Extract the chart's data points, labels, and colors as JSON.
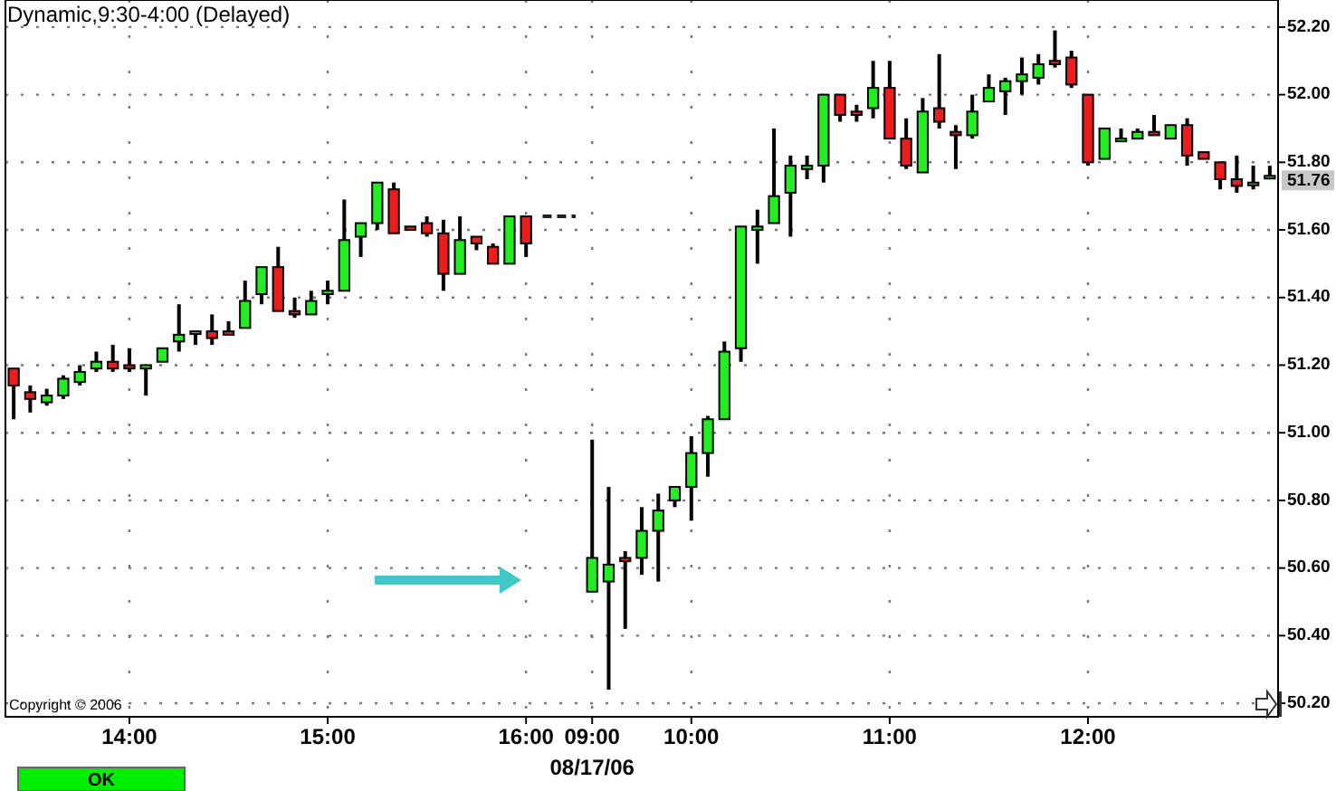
{
  "chart_data": {
    "type": "candlestick",
    "title": "Dynamic,9:30-4:00 (Delayed)",
    "categories": [
      null,
      null,
      null,
      null,
      null,
      null,
      null,
      "14:00",
      null,
      null,
      null,
      null,
      null,
      null,
      null,
      null,
      null,
      null,
      null,
      "15:00",
      null,
      null,
      null,
      null,
      null,
      null,
      null,
      null,
      null,
      null,
      null,
      "16:00",
      null,
      null,
      null,
      "09:00",
      null,
      null,
      null,
      null,
      null,
      "10:00",
      null,
      null,
      null,
      null,
      null,
      null,
      null,
      null,
      null,
      null,
      null,
      "11:00",
      null,
      null,
      null,
      null,
      null,
      null,
      null,
      null,
      null,
      null,
      null,
      "12:00",
      null,
      null,
      null,
      null,
      null,
      null,
      null,
      null,
      null,
      null,
      null
    ],
    "ohlc": [
      [
        51.19,
        51.19,
        51.04,
        51.14
      ],
      [
        51.12,
        51.14,
        51.06,
        51.1
      ],
      [
        51.09,
        51.13,
        51.08,
        51.11
      ],
      [
        51.11,
        51.17,
        51.1,
        51.16
      ],
      [
        51.15,
        51.2,
        51.14,
        51.18
      ],
      [
        51.19,
        51.24,
        51.18,
        51.21
      ],
      [
        51.21,
        51.26,
        51.18,
        51.19
      ],
      [
        51.2,
        51.25,
        51.18,
        51.19
      ],
      [
        51.19,
        51.2,
        51.11,
        51.2
      ],
      [
        51.21,
        51.25,
        51.21,
        51.25
      ],
      [
        51.27,
        51.38,
        51.24,
        51.29
      ],
      [
        51.3,
        51.3,
        51.26,
        51.3
      ],
      [
        51.3,
        51.35,
        51.26,
        51.28
      ],
      [
        51.3,
        51.33,
        51.29,
        51.29
      ],
      [
        51.31,
        51.45,
        51.31,
        51.39
      ],
      [
        51.41,
        51.49,
        51.38,
        51.49
      ],
      [
        51.49,
        51.55,
        51.36,
        51.36
      ],
      [
        51.36,
        51.4,
        51.34,
        51.35
      ],
      [
        51.35,
        51.42,
        51.35,
        51.39
      ],
      [
        51.41,
        51.45,
        51.38,
        51.42
      ],
      [
        51.42,
        51.69,
        51.42,
        51.57
      ],
      [
        51.58,
        51.62,
        51.52,
        51.62
      ],
      [
        51.62,
        51.74,
        51.6,
        51.74
      ],
      [
        51.72,
        51.74,
        51.59,
        51.59
      ],
      [
        51.61,
        51.61,
        51.6,
        51.6
      ],
      [
        51.62,
        51.64,
        51.58,
        51.59
      ],
      [
        51.59,
        51.63,
        51.42,
        51.47
      ],
      [
        51.47,
        51.64,
        51.47,
        51.57
      ],
      [
        51.58,
        51.58,
        51.54,
        51.56
      ],
      [
        51.55,
        51.56,
        51.5,
        51.5
      ],
      [
        51.5,
        51.64,
        51.5,
        51.64
      ],
      [
        51.64,
        51.64,
        51.52,
        51.56
      ],
      null,
      null,
      null,
      [
        50.53,
        50.98,
        50.53,
        50.63
      ],
      [
        50.56,
        50.84,
        50.24,
        50.61
      ],
      [
        50.63,
        50.65,
        50.42,
        50.62
      ],
      [
        50.63,
        50.78,
        50.58,
        50.71
      ],
      [
        50.71,
        50.82,
        50.56,
        50.77
      ],
      [
        50.8,
        50.84,
        50.78,
        50.84
      ],
      [
        50.84,
        50.99,
        50.74,
        50.94
      ],
      [
        50.94,
        51.05,
        50.87,
        51.04
      ],
      [
        51.04,
        51.27,
        51.04,
        51.24
      ],
      [
        51.25,
        51.61,
        51.21,
        51.61
      ],
      [
        51.6,
        51.66,
        51.5,
        51.61
      ],
      [
        51.62,
        51.9,
        51.62,
        51.7
      ],
      [
        51.71,
        51.82,
        51.58,
        51.79
      ],
      [
        51.78,
        51.82,
        51.75,
        51.79
      ],
      [
        51.79,
        52.0,
        51.74,
        52.0
      ],
      [
        52.0,
        52.0,
        51.92,
        51.94
      ],
      [
        51.95,
        51.97,
        51.92,
        51.94
      ],
      [
        51.96,
        52.1,
        51.93,
        52.02
      ],
      [
        52.02,
        52.1,
        51.87,
        51.87
      ],
      [
        51.87,
        51.93,
        51.78,
        51.79
      ],
      [
        51.77,
        51.99,
        51.77,
        51.95
      ],
      [
        51.96,
        52.12,
        51.9,
        51.92
      ],
      [
        51.89,
        51.91,
        51.78,
        51.88
      ],
      [
        51.88,
        52.0,
        51.87,
        51.95
      ],
      [
        51.98,
        52.06,
        51.98,
        52.02
      ],
      [
        52.01,
        52.05,
        51.94,
        52.04
      ],
      [
        52.04,
        52.11,
        52.0,
        52.06
      ],
      [
        52.05,
        52.12,
        52.03,
        52.09
      ],
      [
        52.1,
        52.19,
        52.08,
        52.09
      ],
      [
        52.11,
        52.13,
        52.02,
        52.03
      ],
      [
        52.0,
        52.0,
        51.79,
        51.8
      ],
      [
        51.81,
        51.9,
        51.81,
        51.9
      ],
      [
        51.87,
        51.9,
        51.87,
        51.87
      ],
      [
        51.87,
        51.9,
        51.87,
        51.89
      ],
      [
        51.89,
        51.94,
        51.88,
        51.88
      ],
      [
        51.87,
        51.91,
        51.87,
        51.91
      ],
      [
        51.91,
        51.93,
        51.79,
        51.82
      ],
      [
        51.83,
        51.83,
        51.81,
        51.81
      ],
      [
        51.8,
        51.8,
        51.72,
        51.75
      ],
      [
        51.75,
        51.82,
        51.71,
        51.73
      ],
      [
        51.74,
        51.79,
        51.72,
        51.74
      ],
      [
        51.76,
        51.79,
        51.76,
        51.76
      ]
    ],
    "colors": [
      "#ee1c1c",
      "#ee1c1c",
      "#22ee22",
      "#22ee22",
      "#22ee22",
      "#22ee22",
      "#ee1c1c",
      "#ee1c1c",
      "#22ee22",
      "#22ee22",
      "#22ee22",
      "#22ee22",
      "#ee1c1c",
      "#ee1c1c",
      "#22ee22",
      "#22ee22",
      "#ee1c1c",
      "#ee1c1c",
      "#22ee22",
      "#22ee22",
      "#22ee22",
      "#22ee22",
      "#22ee22",
      "#ee1c1c",
      "#ee1c1c",
      "#ee1c1c",
      "#ee1c1c",
      "#22ee22",
      "#ee1c1c",
      "#ee1c1c",
      "#22ee22",
      "#ee1c1c",
      null,
      null,
      null,
      "#22ee22",
      "#22ee22",
      "#ee1c1c",
      "#22ee22",
      "#22ee22",
      "#22ee22",
      "#22ee22",
      "#22ee22",
      "#22ee22",
      "#22ee22",
      "#22ee22",
      "#22ee22",
      "#22ee22",
      "#22ee22",
      "#22ee22",
      "#ee1c1c",
      "#ee1c1c",
      "#22ee22",
      "#ee1c1c",
      "#ee1c1c",
      "#22ee22",
      "#ee1c1c",
      "#ee1c1c",
      "#22ee22",
      "#22ee22",
      "#22ee22",
      "#22ee22",
      "#22ee22",
      "#ee1c1c",
      "#ee1c1c",
      "#ee1c1c",
      "#22ee22",
      "#22ee22",
      "#22ee22",
      "#ee1c1c",
      "#22ee22",
      "#ee1c1c",
      "#ee1c1c",
      "#ee1c1c",
      "#ee1c1c",
      "#22ee22",
      "#22ee22"
    ],
    "series": [
      {
        "type": "line",
        "color": "#202020",
        "line_style": "dashed",
        "values": [
          null,
          null,
          null,
          null,
          null,
          null,
          null,
          null,
          null,
          null,
          null,
          null,
          null,
          null,
          null,
          null,
          null,
          null,
          null,
          null,
          null,
          null,
          null,
          null,
          null,
          null,
          null,
          null,
          null,
          null,
          null,
          null,
          51.64,
          51.64,
          51.64,
          null,
          null,
          null,
          null,
          null,
          null,
          null,
          null,
          null,
          null,
          null,
          null,
          null,
          null,
          null,
          null,
          null,
          null,
          null,
          null,
          null,
          null,
          null,
          null,
          null,
          null,
          null,
          null,
          null,
          null,
          null,
          null,
          null,
          null,
          null,
          null,
          null,
          null,
          null,
          null,
          null,
          null
        ]
      }
    ],
    "ylim": [
      50.16,
      52.28
    ],
    "yticks": [
      {
        "value": 50.2,
        "label": "50.20"
      },
      {
        "value": 50.4,
        "label": "50.40"
      },
      {
        "value": 50.6,
        "label": "50.60"
      },
      {
        "value": 50.8,
        "label": "50.80"
      },
      {
        "value": 51.0,
        "label": "51.00"
      },
      {
        "value": 51.2,
        "label": "51.20"
      },
      {
        "value": 51.4,
        "label": "51.40"
      },
      {
        "value": 51.6,
        "label": "51.60"
      },
      {
        "value": 51.8,
        "label": "51.80"
      },
      {
        "value": 52.0,
        "label": "52.00"
      },
      {
        "value": 52.2,
        "label": "52.20"
      }
    ],
    "grid": true,
    "annotations": [
      "51.76",
      "08/17/06",
      "Copyright © 2006",
      "OK"
    ]
  }
}
